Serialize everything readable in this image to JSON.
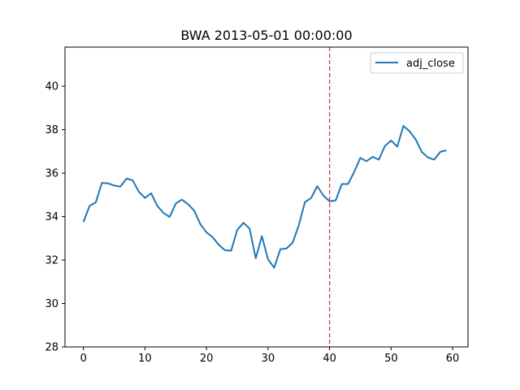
{
  "chart_data": {
    "type": "line",
    "title": "BWA 2013-05-01 00:00:00",
    "xlabel": "",
    "ylabel": "",
    "xlim": [
      -3,
      62.5
    ],
    "ylim": [
      28,
      41.8
    ],
    "xticks": [
      0,
      10,
      20,
      30,
      40,
      50,
      60
    ],
    "yticks": [
      28,
      30,
      32,
      34,
      36,
      38,
      40
    ],
    "grid": false,
    "legend_position": "top-right",
    "series": [
      {
        "name": "adj_close",
        "color": "#1f77b4",
        "x": [
          0,
          1,
          2,
          3,
          4,
          5,
          6,
          7,
          8,
          9,
          10,
          11,
          12,
          13,
          14,
          15,
          16,
          17,
          18,
          19,
          20,
          21,
          22,
          23,
          24,
          25,
          26,
          27,
          28,
          29,
          30,
          31,
          32,
          33,
          34,
          35,
          36,
          37,
          38,
          39,
          40,
          41,
          42,
          43,
          44,
          45,
          46,
          47,
          48,
          49,
          50,
          51,
          52,
          53,
          54,
          55,
          56,
          57,
          58,
          59
        ],
        "y": [
          33.75,
          34.5,
          34.65,
          35.55,
          35.53,
          35.43,
          35.38,
          35.75,
          35.67,
          35.14,
          34.86,
          35.07,
          34.49,
          34.17,
          33.98,
          34.6,
          34.78,
          34.57,
          34.27,
          33.65,
          33.27,
          33.05,
          32.7,
          32.45,
          32.43,
          33.39,
          33.71,
          33.45,
          32.08,
          33.1,
          32.03,
          31.65,
          32.5,
          32.53,
          32.8,
          33.6,
          34.67,
          34.85,
          35.4,
          34.97,
          34.7,
          34.75,
          35.5,
          35.5,
          36.05,
          36.7,
          36.55,
          36.75,
          36.62,
          37.25,
          37.5,
          37.22,
          38.17,
          37.93,
          37.55,
          36.97,
          36.72,
          36.62,
          36.98,
          37.05
        ]
      }
    ],
    "vline": {
      "x": 40,
      "color": "#d62728",
      "style": "dashed"
    }
  }
}
